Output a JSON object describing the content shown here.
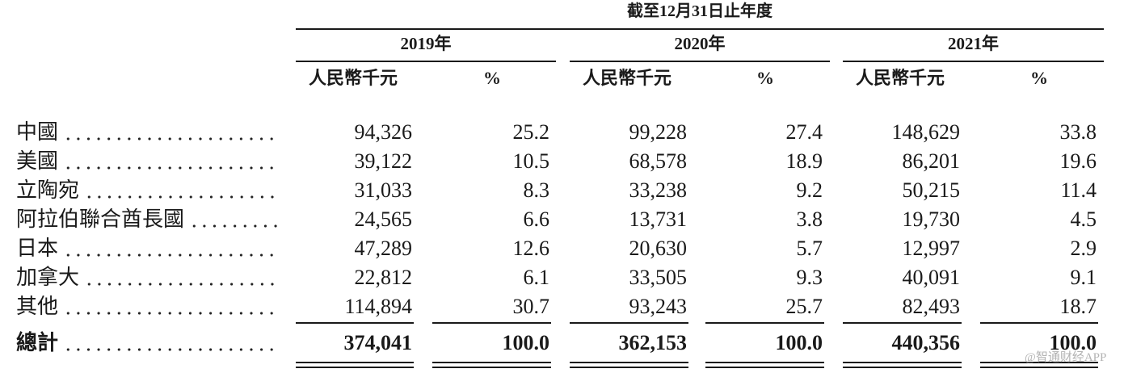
{
  "header": {
    "title": "截至12月31日止年度",
    "years": [
      "2019年",
      "2020年",
      "2021年"
    ],
    "units": [
      "人民幣千元",
      "%",
      "人民幣千元",
      "%",
      "人民幣千元",
      "%"
    ]
  },
  "table": {
    "rows": [
      [
        "中國",
        "94,326",
        "25.2",
        "99,228",
        "27.4",
        "148,629",
        "33.8"
      ],
      [
        "美國",
        "39,122",
        "10.5",
        "68,578",
        "18.9",
        "86,201",
        "19.6"
      ],
      [
        "立陶宛",
        "31,033",
        "8.3",
        "33,238",
        "9.2",
        "50,215",
        "11.4"
      ],
      [
        "阿拉伯聯合酋長國",
        "24,565",
        "6.6",
        "13,731",
        "3.8",
        "19,730",
        "4.5"
      ],
      [
        "日本",
        "47,289",
        "12.6",
        "20,630",
        "5.7",
        "12,997",
        "2.9"
      ],
      [
        "加拿大",
        "22,812",
        "6.1",
        "33,505",
        "9.3",
        "40,091",
        "9.1"
      ],
      [
        "其他",
        "114,894",
        "30.7",
        "93,243",
        "25.7",
        "82,493",
        "18.7"
      ]
    ],
    "total": [
      "總計",
      "374,041",
      "100.0",
      "362,153",
      "100.0",
      "440,356",
      "100.0"
    ]
  },
  "watermark": "@智通财经APP"
}
